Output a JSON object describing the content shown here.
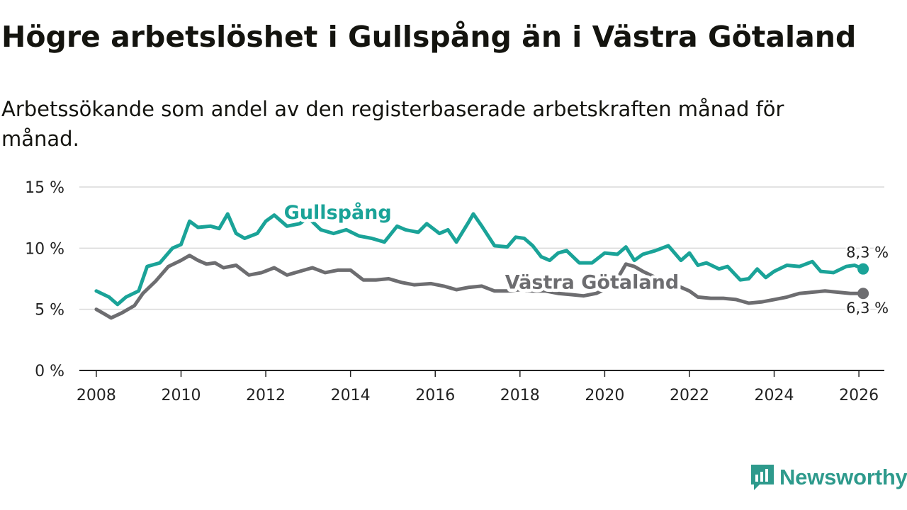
{
  "title": "Högre arbetslöshet i Gullspång än i Västra Götaland",
  "subtitle": "Arbetssökande som andel av den registerbaserade arbetskraften månad för månad.",
  "brand": {
    "name": "Newsworthy",
    "icon": "newsworthy-logo-icon",
    "color": "#2e9a8c"
  },
  "chart_data": {
    "type": "line",
    "title": "Högre arbetslöshet i Gullspång än i Västra Götaland",
    "xlabel": "",
    "ylabel": "",
    "xlim": [
      2007.6,
      2026.6
    ],
    "ylim": [
      0,
      15
    ],
    "y_ticks": [
      0,
      5,
      10,
      15
    ],
    "y_tick_labels": [
      "0 %",
      "5 %",
      "10 %",
      "15 %"
    ],
    "x_ticks": [
      2008,
      2010,
      2012,
      2014,
      2016,
      2018,
      2020,
      2022,
      2024,
      2026
    ],
    "x_tick_labels": [
      "2008",
      "2010",
      "2012",
      "2014",
      "2016",
      "2018",
      "2020",
      "2022",
      "2024",
      "2026"
    ],
    "grid": true,
    "series": [
      {
        "name": "Gullspång",
        "color": "#1aa398",
        "end_label": "8,3 %",
        "points": [
          [
            2008.0,
            6.5
          ],
          [
            2008.3,
            6.0
          ],
          [
            2008.5,
            5.4
          ],
          [
            2008.7,
            6.0
          ],
          [
            2009.0,
            6.5
          ],
          [
            2009.2,
            8.5
          ],
          [
            2009.5,
            8.8
          ],
          [
            2009.8,
            10.0
          ],
          [
            2010.0,
            10.3
          ],
          [
            2010.2,
            12.2
          ],
          [
            2010.4,
            11.7
          ],
          [
            2010.7,
            11.8
          ],
          [
            2010.9,
            11.6
          ],
          [
            2011.1,
            12.8
          ],
          [
            2011.3,
            11.2
          ],
          [
            2011.5,
            10.8
          ],
          [
            2011.8,
            11.2
          ],
          [
            2012.0,
            12.2
          ],
          [
            2012.2,
            12.7
          ],
          [
            2012.5,
            11.8
          ],
          [
            2012.8,
            12.0
          ],
          [
            2013.0,
            12.5
          ],
          [
            2013.3,
            11.5
          ],
          [
            2013.6,
            11.2
          ],
          [
            2013.9,
            11.5
          ],
          [
            2014.2,
            11.0
          ],
          [
            2014.5,
            10.8
          ],
          [
            2014.8,
            10.5
          ],
          [
            2015.1,
            11.8
          ],
          [
            2015.3,
            11.5
          ],
          [
            2015.6,
            11.3
          ],
          [
            2015.8,
            12.0
          ],
          [
            2016.1,
            11.2
          ],
          [
            2016.3,
            11.5
          ],
          [
            2016.5,
            10.5
          ],
          [
            2016.8,
            12.2
          ],
          [
            2016.9,
            12.8
          ],
          [
            2017.1,
            11.8
          ],
          [
            2017.4,
            10.2
          ],
          [
            2017.7,
            10.1
          ],
          [
            2017.9,
            10.9
          ],
          [
            2018.1,
            10.8
          ],
          [
            2018.3,
            10.2
          ],
          [
            2018.5,
            9.3
          ],
          [
            2018.7,
            9.0
          ],
          [
            2018.9,
            9.6
          ],
          [
            2019.1,
            9.8
          ],
          [
            2019.4,
            8.8
          ],
          [
            2019.7,
            8.8
          ],
          [
            2020.0,
            9.6
          ],
          [
            2020.3,
            9.5
          ],
          [
            2020.5,
            10.1
          ],
          [
            2020.7,
            9.0
          ],
          [
            2020.9,
            9.5
          ],
          [
            2021.2,
            9.8
          ],
          [
            2021.5,
            10.2
          ],
          [
            2021.8,
            9.0
          ],
          [
            2022.0,
            9.6
          ],
          [
            2022.2,
            8.6
          ],
          [
            2022.4,
            8.8
          ],
          [
            2022.7,
            8.3
          ],
          [
            2022.9,
            8.5
          ],
          [
            2023.2,
            7.4
          ],
          [
            2023.4,
            7.5
          ],
          [
            2023.6,
            8.3
          ],
          [
            2023.8,
            7.6
          ],
          [
            2024.0,
            8.1
          ],
          [
            2024.3,
            8.6
          ],
          [
            2024.6,
            8.5
          ],
          [
            2024.9,
            8.9
          ],
          [
            2025.1,
            8.1
          ],
          [
            2025.4,
            8.0
          ],
          [
            2025.7,
            8.5
          ],
          [
            2025.9,
            8.6
          ],
          [
            2026.1,
            8.3
          ]
        ]
      },
      {
        "name": "Västra Götaland",
        "color": "#6d6d70",
        "end_label": "6,3 %",
        "points": [
          [
            2008.0,
            5.0
          ],
          [
            2008.2,
            4.6
          ],
          [
            2008.35,
            4.3
          ],
          [
            2008.6,
            4.7
          ],
          [
            2008.9,
            5.3
          ],
          [
            2009.1,
            6.3
          ],
          [
            2009.4,
            7.3
          ],
          [
            2009.7,
            8.5
          ],
          [
            2010.0,
            9.0
          ],
          [
            2010.2,
            9.4
          ],
          [
            2010.4,
            9.0
          ],
          [
            2010.6,
            8.7
          ],
          [
            2010.8,
            8.8
          ],
          [
            2011.0,
            8.4
          ],
          [
            2011.3,
            8.6
          ],
          [
            2011.6,
            7.8
          ],
          [
            2011.9,
            8.0
          ],
          [
            2012.2,
            8.4
          ],
          [
            2012.5,
            7.8
          ],
          [
            2012.8,
            8.1
          ],
          [
            2013.1,
            8.4
          ],
          [
            2013.4,
            8.0
          ],
          [
            2013.7,
            8.2
          ],
          [
            2014.0,
            8.2
          ],
          [
            2014.3,
            7.4
          ],
          [
            2014.6,
            7.4
          ],
          [
            2014.9,
            7.5
          ],
          [
            2015.2,
            7.2
          ],
          [
            2015.5,
            7.0
          ],
          [
            2015.9,
            7.1
          ],
          [
            2016.2,
            6.9
          ],
          [
            2016.5,
            6.6
          ],
          [
            2016.8,
            6.8
          ],
          [
            2017.1,
            6.9
          ],
          [
            2017.4,
            6.5
          ],
          [
            2017.7,
            6.5
          ],
          [
            2018.0,
            6.6
          ],
          [
            2018.3,
            6.5
          ],
          [
            2018.6,
            6.5
          ],
          [
            2018.9,
            6.3
          ],
          [
            2019.2,
            6.2
          ],
          [
            2019.5,
            6.1
          ],
          [
            2019.8,
            6.3
          ],
          [
            2020.1,
            6.8
          ],
          [
            2020.3,
            7.5
          ],
          [
            2020.5,
            8.7
          ],
          [
            2020.7,
            8.5
          ],
          [
            2020.9,
            8.1
          ],
          [
            2021.2,
            7.6
          ],
          [
            2021.5,
            7.2
          ],
          [
            2021.8,
            6.8
          ],
          [
            2022.0,
            6.5
          ],
          [
            2022.2,
            6.0
          ],
          [
            2022.5,
            5.9
          ],
          [
            2022.8,
            5.9
          ],
          [
            2023.1,
            5.8
          ],
          [
            2023.4,
            5.5
          ],
          [
            2023.7,
            5.6
          ],
          [
            2024.0,
            5.8
          ],
          [
            2024.3,
            6.0
          ],
          [
            2024.6,
            6.3
          ],
          [
            2024.9,
            6.4
          ],
          [
            2025.2,
            6.5
          ],
          [
            2025.5,
            6.4
          ],
          [
            2025.8,
            6.3
          ],
          [
            2026.1,
            6.3
          ]
        ]
      }
    ]
  }
}
